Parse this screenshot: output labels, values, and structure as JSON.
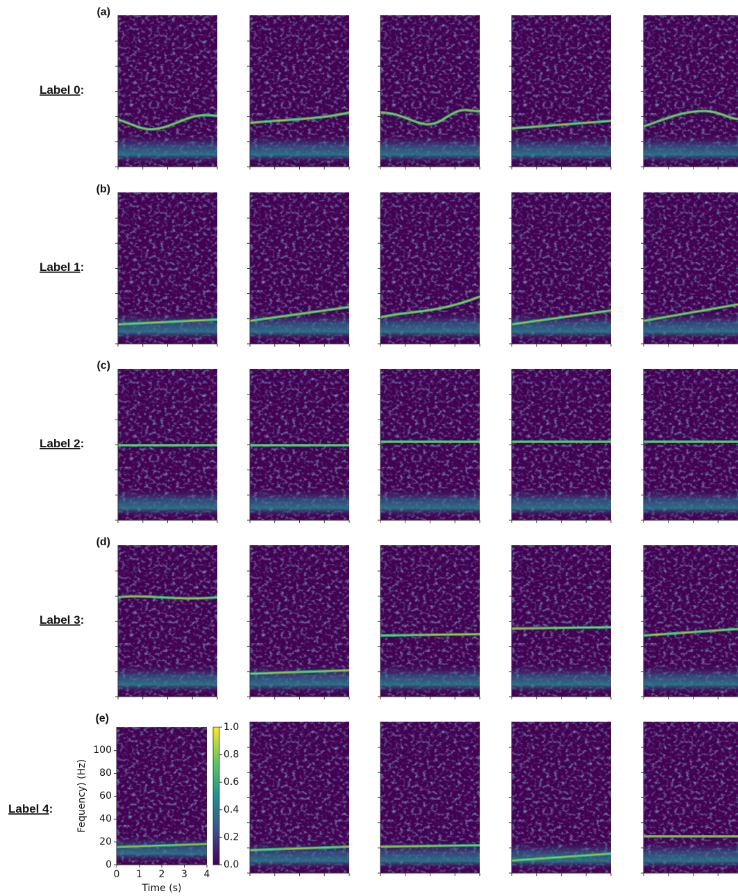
{
  "label_separator": ":",
  "rows": [
    {
      "letter": "(a)",
      "label": "Label 0"
    },
    {
      "letter": "(b)",
      "label": "Label 1"
    },
    {
      "letter": "(c)",
      "label": "Label 2"
    },
    {
      "letter": "(d)",
      "label": "Label 3"
    },
    {
      "letter": "(e)",
      "label": "Label 4"
    }
  ],
  "axes": {
    "ylabel": "Fequency) (Hz)",
    "xlabel": "Time (s)",
    "yticks": [
      "0",
      "20",
      "40",
      "60",
      "80",
      "100"
    ],
    "xticks": [
      "0",
      "1",
      "2",
      "3",
      "4"
    ],
    "colorbar_ticks": [
      "0.0",
      "0.2",
      "0.4",
      "0.6",
      "0.8",
      "1.0"
    ]
  }
}
